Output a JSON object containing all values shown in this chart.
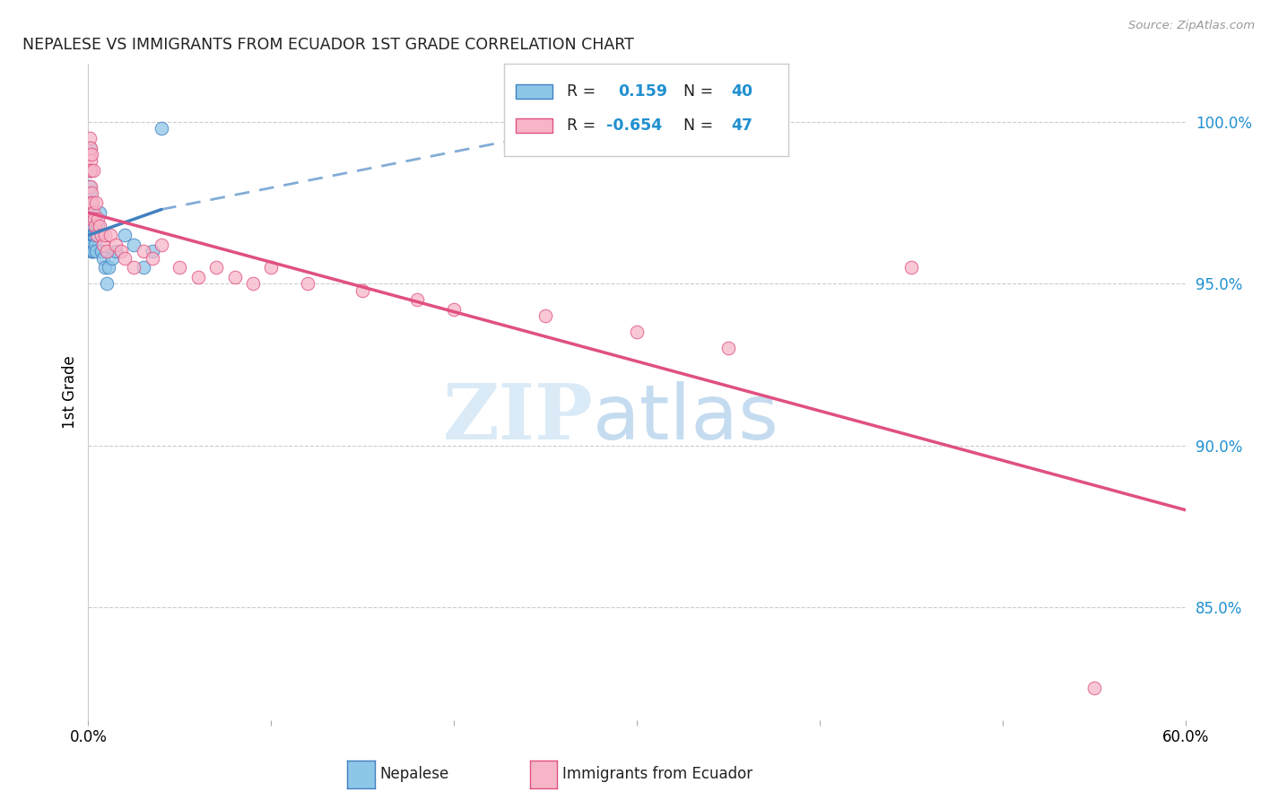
{
  "title": "NEPALESE VS IMMIGRANTS FROM ECUADOR 1ST GRADE CORRELATION CHART",
  "source": "Source: ZipAtlas.com",
  "ylabel": "1st Grade",
  "xlim": [
    0.0,
    60.0
  ],
  "ylim": [
    81.5,
    101.8
  ],
  "yticks": [
    85.0,
    90.0,
    95.0,
    100.0
  ],
  "ytick_labels": [
    "85.0%",
    "90.0%",
    "95.0%",
    "100.0%"
  ],
  "xticks": [
    0.0,
    10.0,
    20.0,
    30.0,
    40.0,
    50.0,
    60.0
  ],
  "legend_R1": "0.159",
  "legend_N1": "40",
  "legend_R2": "-0.654",
  "legend_N2": "47",
  "blue_color": "#8ec6e8",
  "pink_color": "#f7b6c8",
  "blue_line_color": "#4080c0",
  "pink_line_color": "#e05080",
  "nepalese_x": [
    0.05,
    0.07,
    0.08,
    0.1,
    0.1,
    0.12,
    0.13,
    0.14,
    0.15,
    0.15,
    0.16,
    0.17,
    0.17,
    0.18,
    0.19,
    0.2,
    0.21,
    0.22,
    0.23,
    0.25,
    0.26,
    0.28,
    0.3,
    0.35,
    0.4,
    0.45,
    0.5,
    0.6,
    0.7,
    0.8,
    0.9,
    1.0,
    1.1,
    1.3,
    1.5,
    2.0,
    2.5,
    3.0,
    3.5,
    4.0
  ],
  "nepalese_y": [
    97.5,
    98.0,
    97.8,
    99.2,
    98.5,
    97.0,
    97.2,
    96.8,
    97.5,
    96.5,
    96.0,
    96.5,
    96.2,
    96.8,
    96.0,
    97.0,
    96.5,
    96.2,
    96.0,
    96.5,
    96.8,
    96.0,
    96.5,
    96.2,
    96.0,
    96.5,
    96.8,
    97.2,
    96.0,
    95.8,
    95.5,
    95.0,
    95.5,
    95.8,
    96.0,
    96.5,
    96.2,
    95.5,
    96.0,
    99.8
  ],
  "ecuador_x": [
    0.08,
    0.1,
    0.11,
    0.12,
    0.13,
    0.14,
    0.15,
    0.16,
    0.17,
    0.18,
    0.2,
    0.22,
    0.25,
    0.28,
    0.3,
    0.35,
    0.4,
    0.45,
    0.5,
    0.6,
    0.7,
    0.8,
    0.9,
    1.0,
    1.2,
    1.5,
    1.8,
    2.0,
    2.5,
    3.0,
    3.5,
    4.0,
    5.0,
    6.0,
    7.0,
    8.0,
    9.0,
    10.0,
    12.0,
    15.0,
    18.0,
    20.0,
    25.0,
    30.0,
    35.0,
    45.0,
    55.0
  ],
  "ecuador_y": [
    99.5,
    99.0,
    98.8,
    98.5,
    99.2,
    98.0,
    98.5,
    97.8,
    97.5,
    99.0,
    97.0,
    97.5,
    98.5,
    97.2,
    97.0,
    96.8,
    97.5,
    96.5,
    97.0,
    96.8,
    96.5,
    96.2,
    96.5,
    96.0,
    96.5,
    96.2,
    96.0,
    95.8,
    95.5,
    96.0,
    95.8,
    96.2,
    95.5,
    95.2,
    95.5,
    95.2,
    95.0,
    95.5,
    95.0,
    94.8,
    94.5,
    94.2,
    94.0,
    93.5,
    93.0,
    95.5,
    82.5
  ],
  "blue_line_x0": 0.0,
  "blue_line_y0": 96.5,
  "blue_line_x1": 4.0,
  "blue_line_y1": 97.3,
  "blue_dash_x0": 4.0,
  "blue_dash_y0": 97.3,
  "blue_dash_x1": 30.0,
  "blue_dash_y1": 100.2,
  "pink_line_x0": 0.0,
  "pink_line_y0": 97.2,
  "pink_line_x1": 60.0,
  "pink_line_y1": 88.0
}
